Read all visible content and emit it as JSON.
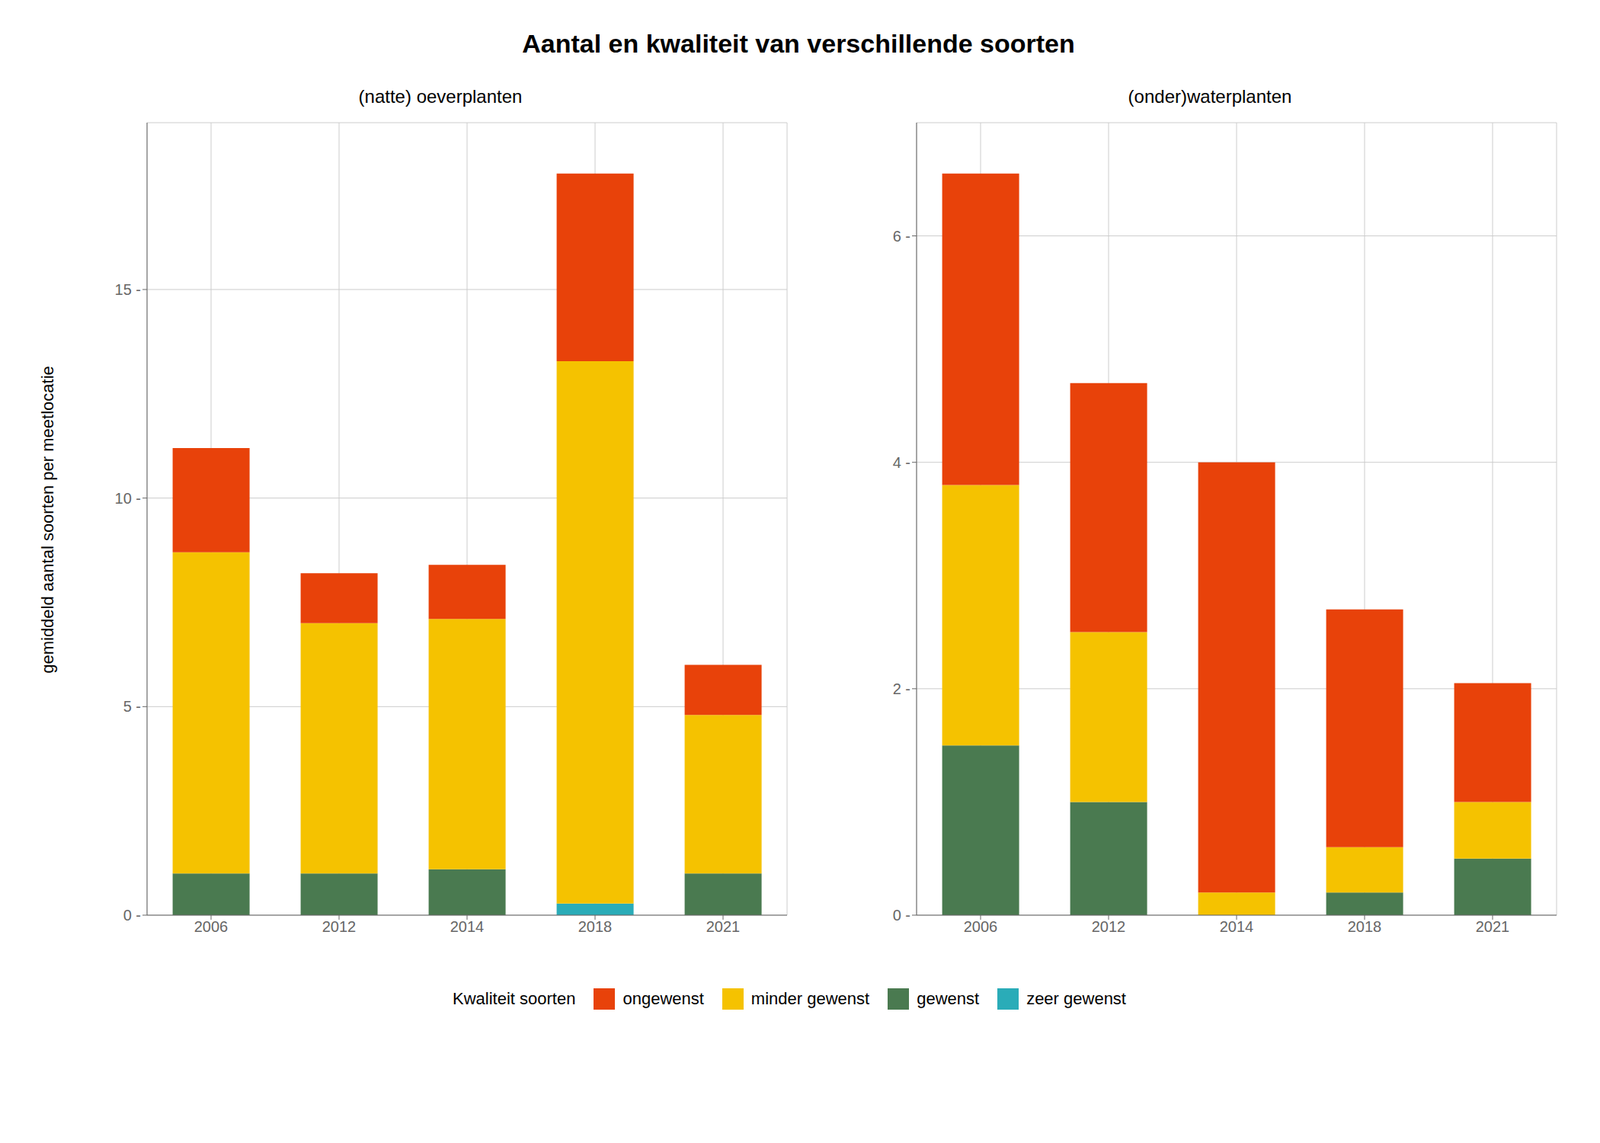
{
  "title": "Aantal en kwaliteit van verschillende soorten",
  "y_label": "gemiddeld aantal soorten per meetlocatie",
  "legend": "bottom",
  "legend_title": "Kwaliteit soorten",
  "chart_data": [
    {
      "type": "bar",
      "subtitle": "(natte) oeverplanten",
      "stacked": true,
      "grid": true,
      "categories": [
        "2006",
        "2012",
        "2014",
        "2018",
        "2021"
      ],
      "series": [
        {
          "name": "zeer gewenst",
          "color": "#2AACB8",
          "values": [
            0.0,
            0.0,
            0.0,
            0.28,
            0.0
          ]
        },
        {
          "name": "gewenst",
          "color": "#4A7A50",
          "values": [
            1.0,
            1.0,
            1.1,
            0.0,
            1.0
          ]
        },
        {
          "name": "minder gewenst",
          "color": "#F5C200",
          "values": [
            7.7,
            6.0,
            6.0,
            13.0,
            3.8
          ]
        },
        {
          "name": "ongewenst",
          "color": "#E8420A",
          "values": [
            2.5,
            1.2,
            1.3,
            4.5,
            1.2
          ]
        }
      ],
      "ylim": [
        0,
        19
      ],
      "yticks": [
        {
          "value": 0,
          "label": "0 -"
        },
        {
          "value": 5,
          "label": "5 -"
        },
        {
          "value": 10,
          "label": "10 -"
        },
        {
          "value": 15,
          "label": "15 -"
        }
      ]
    },
    {
      "type": "bar",
      "subtitle": "(onder)waterplanten",
      "stacked": true,
      "grid": true,
      "categories": [
        "2006",
        "2012",
        "2014",
        "2018",
        "2021"
      ],
      "series": [
        {
          "name": "zeer gewenst",
          "color": "#2AACB8",
          "values": [
            0.0,
            0.0,
            0.0,
            0.0,
            0.0
          ]
        },
        {
          "name": "gewenst",
          "color": "#4A7A50",
          "values": [
            1.5,
            1.0,
            0.0,
            0.2,
            0.5
          ]
        },
        {
          "name": "minder gewenst",
          "color": "#F5C200",
          "values": [
            2.3,
            1.5,
            0.2,
            0.4,
            0.5
          ]
        },
        {
          "name": "ongewenst",
          "color": "#E8420A",
          "values": [
            2.75,
            2.2,
            3.8,
            2.1,
            1.05
          ]
        }
      ],
      "ylim": [
        0,
        7
      ],
      "yticks": [
        {
          "value": 0,
          "label": "0 -"
        },
        {
          "value": 2,
          "label": "2 -"
        },
        {
          "value": 4,
          "label": "4 -"
        },
        {
          "value": 6,
          "label": "6 -"
        }
      ]
    }
  ]
}
